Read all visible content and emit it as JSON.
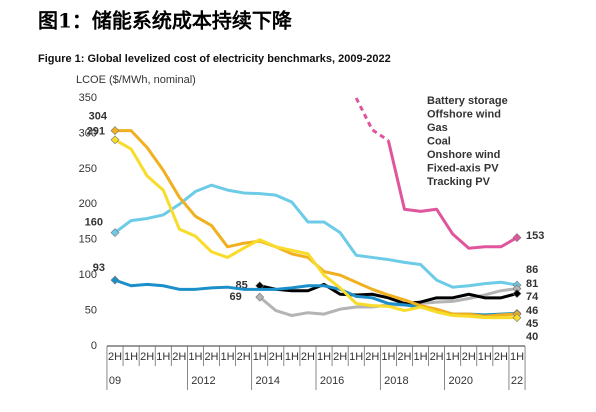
{
  "chart_data": {
    "type": "line",
    "title": "图1：储能系统成本持续下降",
    "subtitle": "Figure 1: Global levelized cost of electricity benchmarks, 2009-2022",
    "y_label": "LCOE ($/MWh, nominal)",
    "categories": [
      "2H",
      "1H",
      "2H",
      "1H",
      "2H",
      "1H",
      "2H",
      "1H",
      "2H",
      "1H",
      "2H",
      "1H",
      "2H",
      "1H",
      "2H",
      "1H",
      "2H",
      "1H",
      "2H",
      "1H",
      "2H",
      "1H",
      "2H",
      "1H",
      "2H",
      "1H"
    ],
    "years": [
      "09",
      null,
      null,
      null,
      null,
      "2012",
      null,
      null,
      null,
      "2014",
      null,
      null,
      null,
      "2016",
      null,
      null,
      null,
      "2018",
      null,
      null,
      null,
      "2020",
      null,
      null,
      null,
      "22"
    ],
    "ylim": [
      0,
      350
    ],
    "yticks": [
      0,
      50,
      100,
      150,
      200,
      250,
      300,
      350
    ],
    "series": [
      {
        "name": "Battery storage",
        "color": "#e0559b",
        "dashed_to": 17,
        "values": [
          null,
          null,
          null,
          null,
          null,
          null,
          null,
          null,
          null,
          null,
          null,
          null,
          null,
          null,
          null,
          350,
          305,
          290,
          193,
          190,
          193,
          158,
          138,
          140,
          140,
          153
        ]
      },
      {
        "name": "Offshore wind",
        "color": "#6ccbe6",
        "values": [
          160,
          177,
          180,
          185,
          200,
          218,
          227,
          220,
          216,
          215,
          213,
          203,
          175,
          175,
          160,
          128,
          125,
          122,
          118,
          115,
          93,
          83,
          85,
          88,
          90,
          86
        ]
      },
      {
        "name": "Gas",
        "color": "#b4b4b4",
        "values": [
          null,
          null,
          null,
          null,
          null,
          null,
          null,
          null,
          null,
          69,
          50,
          43,
          47,
          45,
          52,
          55,
          55,
          58,
          58,
          60,
          62,
          63,
          67,
          72,
          78,
          81
        ]
      },
      {
        "name": "Coal",
        "color": "#000000",
        "values": [
          null,
          null,
          null,
          null,
          null,
          null,
          null,
          null,
          null,
          85,
          80,
          78,
          78,
          87,
          73,
          72,
          73,
          68,
          60,
          62,
          68,
          68,
          73,
          68,
          68,
          74
        ]
      },
      {
        "name": "Onshore wind",
        "color": "#1a8fca",
        "values": [
          93,
          85,
          87,
          85,
          80,
          80,
          82,
          83,
          80,
          80,
          80,
          82,
          85,
          85,
          80,
          70,
          68,
          60,
          58,
          55,
          50,
          45,
          45,
          44,
          45,
          46
        ]
      },
      {
        "name": "Fixed-axis PV",
        "color": "#f0b020",
        "values": [
          304,
          304,
          280,
          248,
          210,
          183,
          170,
          140,
          145,
          148,
          140,
          130,
          125,
          105,
          100,
          90,
          80,
          72,
          65,
          57,
          52,
          45,
          45,
          42,
          44,
          45
        ]
      },
      {
        "name": "Tracking PV",
        "color": "#f9dc2a",
        "values": [
          291,
          278,
          240,
          220,
          165,
          155,
          133,
          125,
          138,
          150,
          140,
          135,
          130,
          100,
          82,
          60,
          57,
          56,
          50,
          55,
          48,
          43,
          42,
          40,
          40,
          40
        ]
      }
    ]
  }
}
